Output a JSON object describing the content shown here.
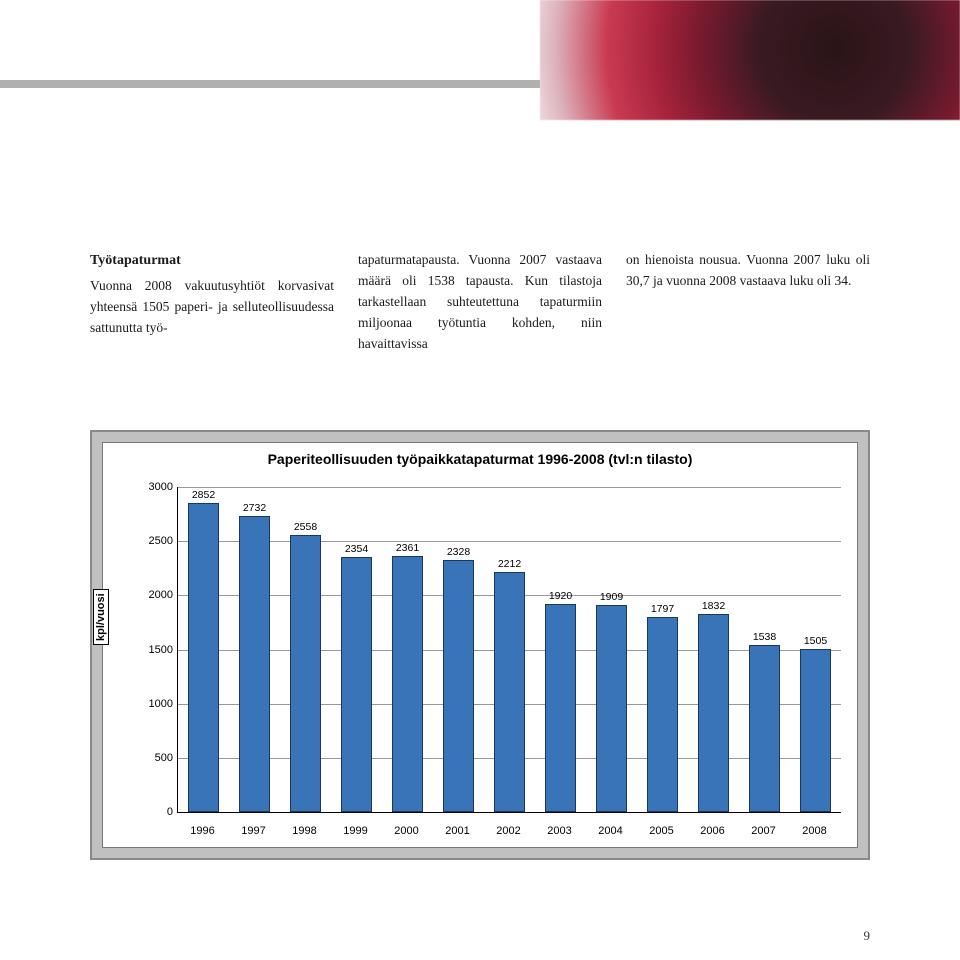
{
  "header": {
    "rule_color": "#b1b0ae",
    "photo_gradient": "red-textile"
  },
  "text": {
    "section_title": "Työtapaturmat",
    "col1": "Vuonna 2008 vakuutusyhtiöt korvasivat yhteensä 1505 paperi- ja selluteollisuudessa sattunutta työ-",
    "col2": "tapaturmatapausta. Vuonna 2007 vastaava määrä oli 1538 tapausta. Kun tilastoja tarkastellaan suhteutettuna tapaturmiin miljoonaa työtuntia kohden, niin havaittavissa",
    "col3": "on hienoista nousua. Vuonna 2007 luku oli 30,7 ja vuonna 2008 vastaava luku oli 34."
  },
  "chart": {
    "type": "bar",
    "title": "Paperiteollisuuden työpaikkatapaturmat 1996-2008 (tvl:n tilasto)",
    "title_fontsize": 14,
    "y_axis_label": "kpl/vuosi",
    "ylim": [
      0,
      3000
    ],
    "ytick_step": 500,
    "categories": [
      "1996",
      "1997",
      "1998",
      "1999",
      "2000",
      "2001",
      "2002",
      "2003",
      "2004",
      "2005",
      "2006",
      "2007",
      "2008"
    ],
    "values": [
      2852,
      2732,
      2558,
      2354,
      2361,
      2328,
      2212,
      1920,
      1909,
      1797,
      1832,
      1538,
      1505
    ],
    "bar_color": "#3a74b8",
    "bar_border": "#1a3760",
    "bar_width": 0.62,
    "grid_color": "#000000",
    "grid_opacity": 0.4,
    "background_color": "#ffffff",
    "frame_background": "#c0c0c0",
    "frame_border": "#8a8988",
    "label_fontsize": 11,
    "value_label_fontsize": 10.5
  },
  "page_number": "9"
}
